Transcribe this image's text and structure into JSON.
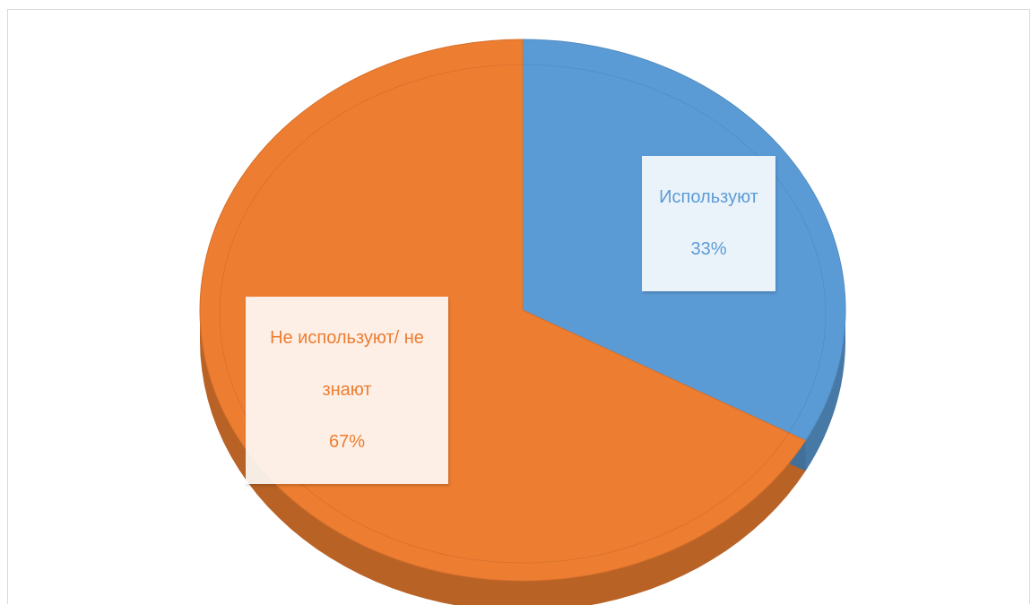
{
  "chart_data": {
    "type": "pie",
    "style": "3d",
    "title": "",
    "categories": [
      "Используют",
      "Не используют/ не знают"
    ],
    "values": [
      33,
      67
    ],
    "value_format": "percent",
    "colors": [
      "#5b9bd5",
      "#ed7d31"
    ],
    "label_colors": [
      "#5b9bd5",
      "#ed7d31"
    ],
    "labels": [
      {
        "lines": [
          "Используют"
        ],
        "value": "33%"
      },
      {
        "lines": [
          "Не используют/ не",
          "знают"
        ],
        "value": "67%"
      }
    ],
    "legend": "none"
  }
}
